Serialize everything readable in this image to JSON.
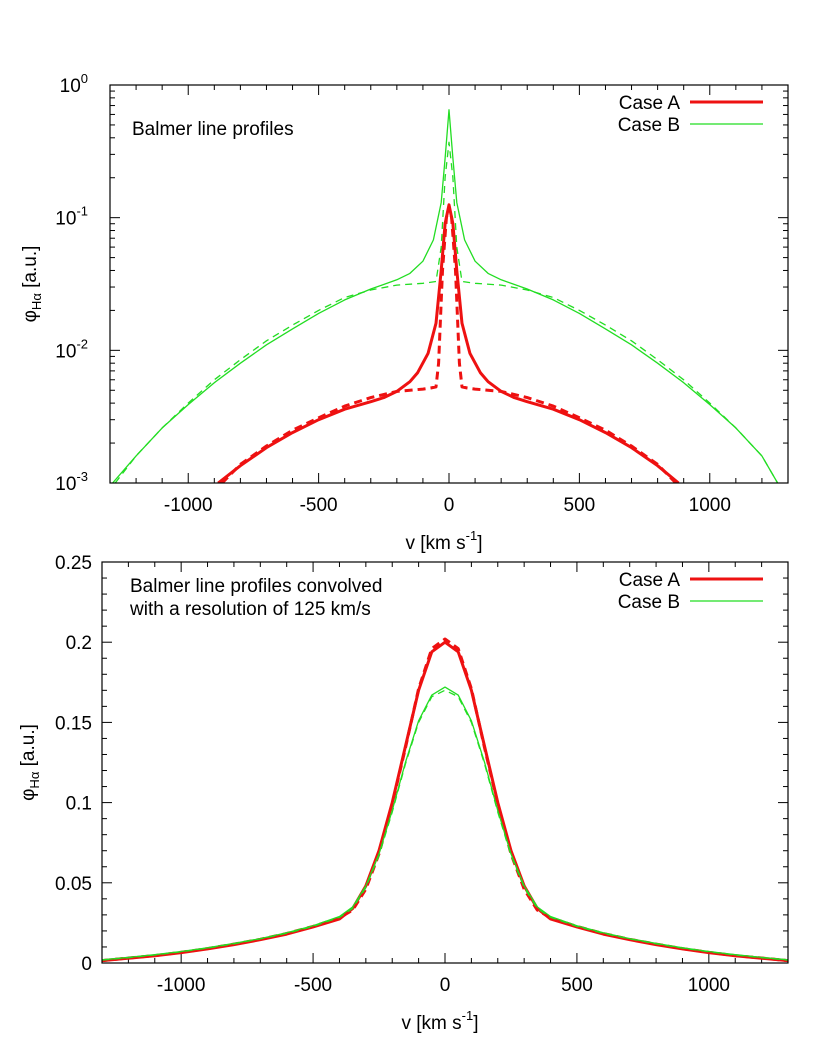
{
  "chart_data": [
    {
      "type": "line",
      "yscale": "log",
      "annotation": "Balmer line profiles",
      "xlabel": {
        "main": "v  [km s",
        "sup": "-1",
        "close": "]"
      },
      "ylabel": {
        "main": "φ",
        "sub": "Hα",
        "rest": "  [a.u.]"
      },
      "xlim": [
        -1300,
        1300
      ],
      "ylim": [
        0.001,
        1
      ],
      "xticks": [
        {
          "value": -1000,
          "label": "-1000"
        },
        {
          "value": -500,
          "label": "-500"
        },
        {
          "value": 0,
          "label": "0"
        },
        {
          "value": 500,
          "label": "500"
        },
        {
          "value": 1000,
          "label": "1000"
        }
      ],
      "yticks": [
        {
          "value": 1,
          "base": "10",
          "exp": "0"
        },
        {
          "value": 0.1,
          "base": "10",
          "exp": "-1"
        },
        {
          "value": 0.01,
          "base": "10",
          "exp": "-2"
        },
        {
          "value": 0.001,
          "base": "10",
          "exp": "-3"
        }
      ],
      "legend": {
        "position": "top-right",
        "entries": [
          {
            "name": "Case A",
            "color": "#ee1111",
            "width": 3
          },
          {
            "name": "Case B",
            "color": "#22dd22",
            "width": 1.3
          }
        ]
      },
      "series": [
        {
          "name": "Case A",
          "style": "solid",
          "color": "#ee1111",
          "width": 3,
          "x": [
            -885,
            -800,
            -700,
            -600,
            -500,
            -400,
            -300,
            -250,
            -200,
            -150,
            -120,
            -80,
            -50,
            -30,
            -15,
            0,
            15,
            30,
            50,
            80,
            120,
            150,
            200,
            250,
            300,
            400,
            500,
            600,
            700,
            800,
            880
          ],
          "y": [
            0.001,
            0.00135,
            0.00185,
            0.0024,
            0.003,
            0.0036,
            0.0041,
            0.0044,
            0.0049,
            0.0058,
            0.0068,
            0.0095,
            0.016,
            0.04,
            0.09,
            0.125,
            0.09,
            0.04,
            0.016,
            0.0095,
            0.0068,
            0.0058,
            0.0049,
            0.0044,
            0.0041,
            0.0036,
            0.003,
            0.0024,
            0.00185,
            0.00135,
            0.001
          ]
        },
        {
          "name": "Case A",
          "style": "dashed",
          "color": "#ee1111",
          "width": 3,
          "x": [
            -870,
            -800,
            -700,
            -600,
            -500,
            -400,
            -300,
            -200,
            -100,
            -70,
            -50,
            -40,
            -25,
            -10,
            0,
            10,
            25,
            40,
            50,
            70,
            100,
            200,
            300,
            400,
            500,
            600,
            700,
            800,
            870
          ],
          "y": [
            0.001,
            0.00138,
            0.0019,
            0.0025,
            0.0031,
            0.0038,
            0.0044,
            0.0049,
            0.0051,
            0.0052,
            0.0053,
            0.008,
            0.04,
            0.1,
            0.12,
            0.1,
            0.04,
            0.008,
            0.0053,
            0.0052,
            0.0051,
            0.0049,
            0.0044,
            0.0038,
            0.0031,
            0.0025,
            0.0019,
            0.00138,
            0.001
          ]
        },
        {
          "name": "Case B",
          "style": "solid",
          "color": "#22dd22",
          "width": 1.3,
          "x": [
            -1290,
            -1200,
            -1100,
            -1000,
            -900,
            -800,
            -700,
            -600,
            -500,
            -400,
            -300,
            -200,
            -150,
            -100,
            -60,
            -30,
            -15,
            0,
            15,
            30,
            60,
            100,
            150,
            200,
            300,
            400,
            500,
            600,
            700,
            800,
            900,
            1000,
            1100,
            1200,
            1260
          ],
          "y": [
            0.001,
            0.0016,
            0.0026,
            0.0039,
            0.0057,
            0.008,
            0.011,
            0.0145,
            0.019,
            0.024,
            0.029,
            0.034,
            0.038,
            0.047,
            0.068,
            0.13,
            0.28,
            0.65,
            0.28,
            0.13,
            0.068,
            0.047,
            0.038,
            0.034,
            0.029,
            0.024,
            0.019,
            0.0145,
            0.011,
            0.008,
            0.0057,
            0.0039,
            0.0026,
            0.0016,
            0.001
          ]
        },
        {
          "name": "Case B",
          "style": "dashed",
          "color": "#22dd22",
          "width": 1.3,
          "x": [
            -1280,
            -1200,
            -1100,
            -1000,
            -900,
            -800,
            -700,
            -600,
            -500,
            -400,
            -300,
            -200,
            -100,
            -50,
            -30,
            -15,
            0,
            15,
            30,
            50,
            100,
            200,
            300,
            400,
            500,
            600,
            700,
            800,
            900,
            1000,
            1100,
            1200,
            1260
          ],
          "y": [
            0.001,
            0.0016,
            0.0026,
            0.004,
            0.006,
            0.0085,
            0.0118,
            0.0155,
            0.02,
            0.025,
            0.0285,
            0.031,
            0.032,
            0.033,
            0.06,
            0.2,
            0.37,
            0.2,
            0.06,
            0.033,
            0.032,
            0.031,
            0.0285,
            0.025,
            0.02,
            0.0155,
            0.0118,
            0.0085,
            0.006,
            0.004,
            0.0026,
            0.0016,
            0.001
          ]
        }
      ]
    },
    {
      "type": "line",
      "yscale": "linear",
      "annotation": [
        "Balmer line profiles convolved",
        "with a resolution of 125 km/s"
      ],
      "xlabel": {
        "main": "v  [km s",
        "sup": "-1",
        "close": "]"
      },
      "ylabel": {
        "main": "φ",
        "sub": "Hα",
        "rest": "  [a.u.]"
      },
      "xlim": [
        -1300,
        1300
      ],
      "ylim": [
        0,
        0.25
      ],
      "xticks": [
        {
          "value": -1000,
          "label": "-1000"
        },
        {
          "value": -500,
          "label": "-500"
        },
        {
          "value": 0,
          "label": "0"
        },
        {
          "value": 500,
          "label": "500"
        },
        {
          "value": 1000,
          "label": "1000"
        }
      ],
      "yticks": [
        {
          "value": 0,
          "label": "0"
        },
        {
          "value": 0.05,
          "label": "0.05"
        },
        {
          "value": 0.1,
          "label": "0.1"
        },
        {
          "value": 0.15,
          "label": "0.15"
        },
        {
          "value": 0.2,
          "label": "0.2"
        },
        {
          "value": 0.25,
          "label": "0.25"
        }
      ],
      "legend": {
        "position": "top-right",
        "entries": [
          {
            "name": "Case A",
            "color": "#ee1111",
            "width": 3
          },
          {
            "name": "Case B",
            "color": "#22dd22",
            "width": 1.3
          }
        ]
      },
      "series": [
        {
          "name": "Case A",
          "style": "solid",
          "color": "#ee1111",
          "width": 3,
          "x": [
            -1300,
            -1200,
            -1100,
            -1000,
            -900,
            -800,
            -700,
            -600,
            -500,
            -400,
            -350,
            -300,
            -250,
            -200,
            -150,
            -100,
            -50,
            0,
            50,
            100,
            150,
            200,
            250,
            300,
            350,
            400,
            500,
            600,
            700,
            800,
            900,
            1000,
            1100,
            1200,
            1300
          ],
          "y": [
            0.0015,
            0.003,
            0.0045,
            0.0065,
            0.0088,
            0.0115,
            0.0145,
            0.018,
            0.0225,
            0.0275,
            0.034,
            0.048,
            0.07,
            0.1,
            0.135,
            0.17,
            0.194,
            0.2,
            0.194,
            0.17,
            0.135,
            0.1,
            0.07,
            0.048,
            0.034,
            0.0275,
            0.0225,
            0.018,
            0.0145,
            0.0115,
            0.0088,
            0.0065,
            0.0045,
            0.003,
            0.0015
          ]
        },
        {
          "name": "Case A",
          "style": "dashed",
          "color": "#ee1111",
          "width": 3,
          "x": [
            -1300,
            -1200,
            -1100,
            -1000,
            -900,
            -800,
            -700,
            -600,
            -500,
            -400,
            -350,
            -300,
            -250,
            -200,
            -150,
            -100,
            -50,
            0,
            50,
            100,
            150,
            200,
            250,
            300,
            350,
            400,
            500,
            600,
            700,
            800,
            900,
            1000,
            1100,
            1200,
            1300
          ],
          "y": [
            0.0015,
            0.0031,
            0.0046,
            0.0067,
            0.009,
            0.0118,
            0.0148,
            0.0184,
            0.0228,
            0.0282,
            0.033,
            0.046,
            0.068,
            0.099,
            0.134,
            0.171,
            0.196,
            0.202,
            0.196,
            0.171,
            0.134,
            0.099,
            0.068,
            0.046,
            0.033,
            0.0282,
            0.0228,
            0.0184,
            0.0148,
            0.0118,
            0.009,
            0.0067,
            0.0046,
            0.0031,
            0.0015
          ]
        },
        {
          "name": "Case B",
          "style": "solid",
          "color": "#22dd22",
          "width": 1.3,
          "x": [
            -1300,
            -1200,
            -1100,
            -1000,
            -900,
            -800,
            -700,
            -600,
            -500,
            -400,
            -350,
            -300,
            -250,
            -200,
            -150,
            -100,
            -50,
            0,
            50,
            100,
            150,
            200,
            250,
            300,
            350,
            400,
            500,
            600,
            700,
            800,
            900,
            1000,
            1100,
            1200,
            1300
          ],
          "y": [
            0.002,
            0.0035,
            0.0052,
            0.0072,
            0.0095,
            0.0122,
            0.0152,
            0.0188,
            0.0232,
            0.029,
            0.035,
            0.048,
            0.068,
            0.095,
            0.125,
            0.151,
            0.167,
            0.172,
            0.167,
            0.151,
            0.125,
            0.095,
            0.068,
            0.048,
            0.035,
            0.029,
            0.0232,
            0.0188,
            0.0152,
            0.0122,
            0.0095,
            0.0072,
            0.0052,
            0.0035,
            0.002
          ]
        },
        {
          "name": "Case B",
          "style": "dashed",
          "color": "#22dd22",
          "width": 1.3,
          "x": [
            -1300,
            -1200,
            -1100,
            -1000,
            -900,
            -800,
            -700,
            -600,
            -500,
            -400,
            -350,
            -300,
            -250,
            -200,
            -150,
            -100,
            -50,
            0,
            50,
            100,
            150,
            200,
            250,
            300,
            350,
            400,
            500,
            600,
            700,
            800,
            900,
            1000,
            1100,
            1200,
            1300
          ],
          "y": [
            0.0018,
            0.0033,
            0.005,
            0.007,
            0.0093,
            0.012,
            0.015,
            0.0185,
            0.0228,
            0.0285,
            0.034,
            0.047,
            0.067,
            0.094,
            0.124,
            0.15,
            0.166,
            0.17,
            0.166,
            0.15,
            0.124,
            0.094,
            0.067,
            0.047,
            0.034,
            0.0285,
            0.0228,
            0.0185,
            0.015,
            0.012,
            0.0093,
            0.007,
            0.005,
            0.0033,
            0.0018
          ]
        }
      ]
    }
  ]
}
